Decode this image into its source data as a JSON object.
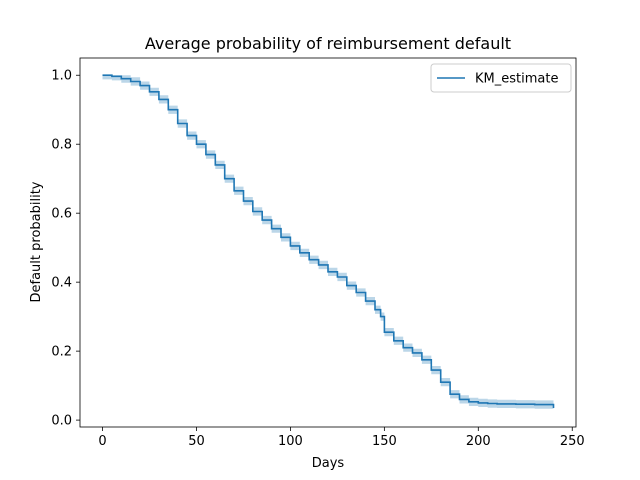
{
  "chart_data": {
    "type": "line",
    "title": "Average probability of reimbursement default",
    "xlabel": "Days",
    "ylabel": "Default probability",
    "xlim": [
      -12,
      252
    ],
    "ylim": [
      -0.02,
      1.05
    ],
    "xticks": [
      0,
      50,
      100,
      150,
      200,
      250
    ],
    "yticks": [
      0.0,
      0.2,
      0.4,
      0.6,
      0.8,
      1.0
    ],
    "ytick_labels": [
      "0.0",
      "0.2",
      "0.4",
      "0.6",
      "0.8",
      "1.0"
    ],
    "grid": false,
    "legend": {
      "position": "top-right",
      "entries": [
        "KM_estimate"
      ]
    },
    "colors": {
      "line": "#1f77b4",
      "band": "#1f77b4"
    },
    "series": [
      {
        "name": "KM_estimate",
        "points": [
          [
            0,
            1.0
          ],
          [
            5,
            0.997
          ],
          [
            10,
            0.99
          ],
          [
            15,
            0.982
          ],
          [
            20,
            0.97
          ],
          [
            25,
            0.952
          ],
          [
            30,
            0.93
          ],
          [
            35,
            0.9
          ],
          [
            40,
            0.86
          ],
          [
            45,
            0.825
          ],
          [
            50,
            0.8
          ],
          [
            55,
            0.77
          ],
          [
            60,
            0.74
          ],
          [
            65,
            0.7
          ],
          [
            70,
            0.665
          ],
          [
            75,
            0.635
          ],
          [
            80,
            0.605
          ],
          [
            85,
            0.58
          ],
          [
            90,
            0.555
          ],
          [
            95,
            0.53
          ],
          [
            100,
            0.505
          ],
          [
            105,
            0.485
          ],
          [
            110,
            0.465
          ],
          [
            115,
            0.45
          ],
          [
            120,
            0.43
          ],
          [
            125,
            0.415
          ],
          [
            130,
            0.39
          ],
          [
            135,
            0.37
          ],
          [
            140,
            0.345
          ],
          [
            145,
            0.32
          ],
          [
            148,
            0.3
          ],
          [
            150,
            0.255
          ],
          [
            155,
            0.23
          ],
          [
            160,
            0.21
          ],
          [
            165,
            0.195
          ],
          [
            170,
            0.175
          ],
          [
            175,
            0.145
          ],
          [
            180,
            0.11
          ],
          [
            185,
            0.075
          ],
          [
            190,
            0.06
          ],
          [
            195,
            0.053
          ],
          [
            200,
            0.05
          ],
          [
            205,
            0.048
          ],
          [
            210,
            0.047
          ],
          [
            220,
            0.046
          ],
          [
            230,
            0.045
          ],
          [
            238,
            0.045
          ],
          [
            240,
            0.035
          ]
        ],
        "ci_halfwidth": 0.012
      }
    ]
  }
}
